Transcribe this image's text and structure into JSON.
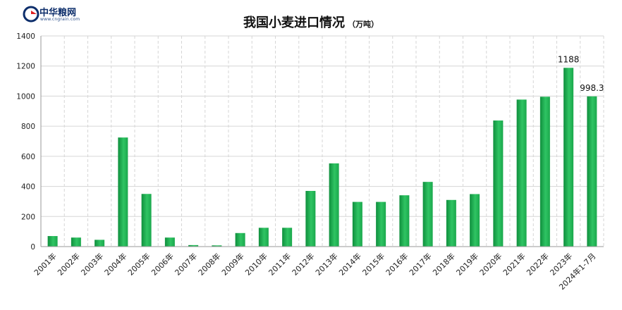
{
  "logo": {
    "name": "中华粮网",
    "url_text": "www.cngrain.com"
  },
  "chart_data": {
    "type": "bar",
    "title": "我国小麦进口情况",
    "unit": "（万吨）",
    "categories": [
      "2001年",
      "2002年",
      "2003年",
      "2004年",
      "2005年",
      "2006年",
      "2007年",
      "2008年",
      "2009年",
      "2010年",
      "2011年",
      "2012年",
      "2013年",
      "2014年",
      "2015年",
      "2016年",
      "2017年",
      "2018年",
      "2019年",
      "2020年",
      "2021年",
      "2022年",
      "2023年",
      "2024年1-7月"
    ],
    "values": [
      70,
      60,
      45,
      725,
      350,
      60,
      10,
      8,
      90,
      125,
      125,
      370,
      553,
      297,
      297,
      341,
      430,
      310,
      349,
      838,
      977,
      996,
      1188,
      998.3
    ],
    "data_labels": {
      "22": "1188",
      "23": "998.3"
    },
    "yticks": [
      "0",
      "200",
      "400",
      "600",
      "800",
      "1000",
      "1200",
      "1400"
    ],
    "ylim": [
      0,
      1400
    ],
    "grid": true,
    "colors": {
      "bar_dark": "#0f8f3d",
      "bar_light": "#3ad070",
      "grid": "#d6d6d6"
    }
  }
}
